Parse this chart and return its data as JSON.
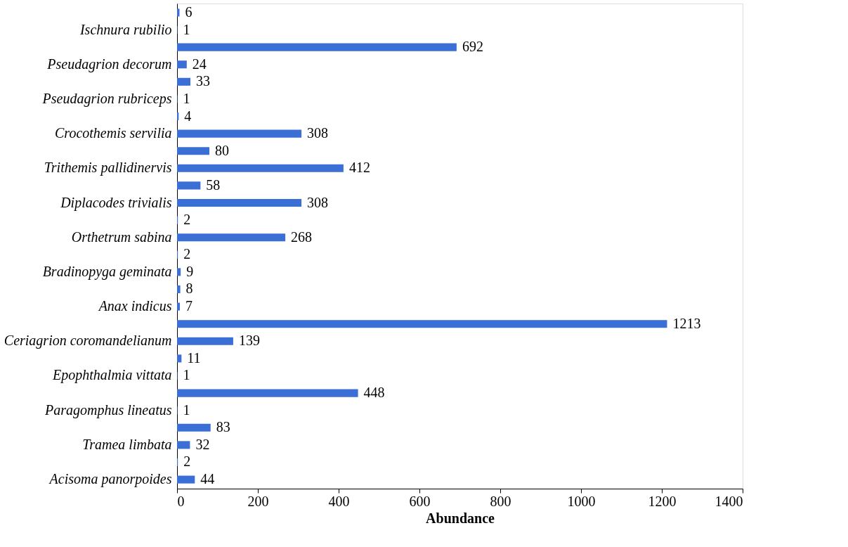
{
  "chart_data": {
    "type": "bar",
    "orientation": "horizontal",
    "xlabel": "Abundance",
    "categories": [
      null,
      "Ischnura rubilio",
      null,
      "Pseudagrion decorum",
      null,
      "Pseudagrion rubriceps",
      null,
      "Crocothemis servilia",
      null,
      "Trithemis pallidinervis",
      null,
      "Diplacodes trivialis",
      null,
      "Orthetrum sabina",
      null,
      "Bradinopyga geminata",
      null,
      "Anax indicus",
      null,
      "Ceriagrion coromandelianum",
      null,
      "Epophthalmia vittata",
      null,
      "Paragomphus lineatus",
      null,
      "Tramea limbata",
      null,
      "Acisoma panorpoides"
    ],
    "values": [
      6,
      1,
      692,
      24,
      33,
      1,
      4,
      308,
      80,
      412,
      58,
      308,
      2,
      268,
      2,
      9,
      8,
      7,
      1213,
      139,
      11,
      1,
      448,
      1,
      83,
      32,
      2,
      44
    ],
    "color": "#3b6fd6",
    "data_labels": true,
    "xlim": [
      0,
      1400
    ],
    "xticks": [
      0,
      200,
      400,
      600,
      800,
      1000,
      1200,
      1400
    ],
    "grid": false
  }
}
